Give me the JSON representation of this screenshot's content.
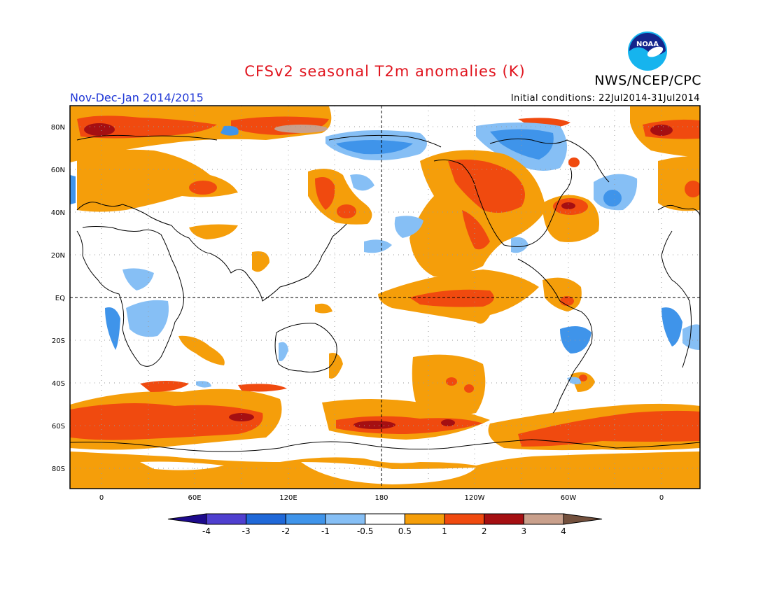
{
  "header": {
    "title": "CFSv2 seasonal T2m anomalies (K)",
    "agency": "NWS/NCEP/CPC",
    "season": "Nov-Dec-Jan 2014/2015",
    "initial_conditions": "Initial conditions: 22Jul2014-31Jul2014",
    "logo_text": "NOAA"
  },
  "axes": {
    "lat_labels": [
      "80N",
      "60N",
      "40N",
      "20N",
      "EQ",
      "20S",
      "40S",
      "60S",
      "80S"
    ],
    "lon_labels": [
      "0",
      "60E",
      "120E",
      "180",
      "120W",
      "60W",
      "0"
    ]
  },
  "colorbar": {
    "labels": [
      "-4",
      "-3",
      "-2",
      "-1",
      "-0.5",
      "0.5",
      "1",
      "2",
      "3",
      "4"
    ],
    "colors": [
      "#1d0a8c",
      "#4f3fcf",
      "#1f68d8",
      "#3f94ea",
      "#86bff5",
      "#ffffff",
      "#f59e0a",
      "#f04a0f",
      "#a50f12",
      "#c9a08c",
      "#73503d"
    ]
  }
}
